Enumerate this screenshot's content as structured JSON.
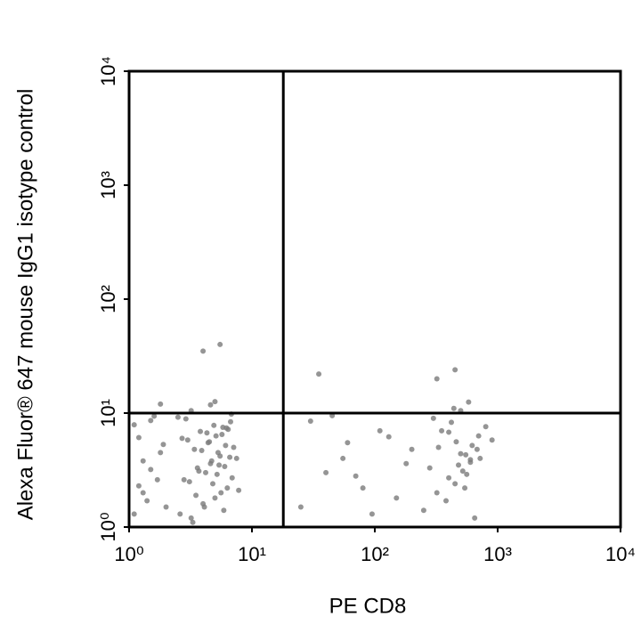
{
  "chart_data": {
    "type": "scatter",
    "xlabel": "PE CD8",
    "ylabel": "Alexa Fluor® 647 mouse IgG1 isotype control",
    "log_x": true,
    "log_y": true,
    "color": "#7a7a7a",
    "xlim": [
      1,
      10000
    ],
    "ylim": [
      1,
      10000
    ],
    "xticks": [
      {
        "value": 1,
        "label": "10⁰"
      },
      {
        "value": 10,
        "label": "10¹"
      },
      {
        "value": 100,
        "label": "10²"
      },
      {
        "value": 1000,
        "label": "10³"
      },
      {
        "value": 10000,
        "label": "10⁴"
      }
    ],
    "yticks": [
      {
        "value": 1,
        "label": "10⁰"
      },
      {
        "value": 10,
        "label": "10¹"
      },
      {
        "value": 100,
        "label": "10²"
      },
      {
        "value": 1000,
        "label": "10³"
      },
      {
        "value": 10000,
        "label": "10⁴"
      }
    ],
    "gate_x": 18,
    "gate_y": 10,
    "x": [
      3.2,
      4.1,
      5.0,
      6.3,
      2.8,
      3.7,
      4.6,
      5.5,
      7.1,
      3.0,
      4.3,
      5.8,
      6.7,
      2.6,
      3.5,
      4.8,
      5.2,
      6.0,
      7.5,
      3.9,
      4.4,
      5.1,
      6.4,
      2.9,
      3.3,
      4.0,
      5.6,
      6.9,
      3.6,
      4.7,
      5.3,
      6.1,
      2.7,
      3.8,
      4.9,
      5.9,
      7.8,
      3.1,
      4.2,
      5.4,
      6.6,
      3.4,
      4.5,
      5.7,
      6.2,
      2.5,
      3.2,
      4.6,
      5.0,
      6.8,
      1.1,
      1.3,
      1.5,
      1.8,
      1.2,
      1.4,
      1.7,
      1.9,
      1.1,
      1.6,
      2.0,
      1.3,
      1.5,
      1.2,
      1.8,
      25,
      40,
      60,
      80,
      110,
      150,
      30,
      55,
      95,
      130,
      180,
      45,
      70,
      200,
      35,
      250,
      320,
      400,
      480,
      550,
      620,
      700,
      800,
      300,
      380,
      450,
      520,
      600,
      680,
      900,
      350,
      420,
      500,
      580,
      650,
      280,
      460,
      540,
      720,
      400,
      500,
      600,
      330,
      440,
      560,
      5.5,
      4.0,
      450,
      320
    ],
    "y": [
      1.2,
      1.5,
      1.8,
      2.2,
      2.6,
      3.1,
      3.6,
      4.2,
      5.0,
      5.8,
      6.7,
      7.5,
      8.4,
      1.3,
      1.9,
      2.4,
      2.9,
      3.4,
      4.0,
      4.7,
      5.5,
      6.3,
      7.2,
      8.9,
      1.1,
      1.6,
      2.0,
      2.7,
      3.3,
      3.8,
      4.5,
      5.2,
      6.0,
      6.9,
      7.8,
      1.4,
      2.1,
      2.5,
      3.0,
      3.5,
      4.1,
      4.8,
      5.6,
      6.5,
      7.4,
      9.2,
      10.5,
      11.8,
      12.6,
      9.8,
      1.3,
      2.0,
      3.2,
      4.5,
      6.1,
      1.7,
      2.6,
      5.3,
      7.9,
      9.4,
      1.5,
      3.8,
      8.6,
      2.3,
      12.0,
      1.5,
      3.0,
      5.5,
      2.2,
      7.0,
      1.8,
      8.5,
      4.0,
      1.3,
      6.2,
      3.6,
      9.5,
      2.8,
      4.8,
      22,
      1.4,
      2.0,
      2.7,
      3.5,
      4.3,
      5.2,
      6.3,
      7.6,
      9.0,
      1.7,
      2.4,
      3.1,
      3.9,
      4.8,
      5.8,
      7.0,
      8.3,
      10.5,
      12.5,
      1.2,
      3.3,
      5.6,
      2.2,
      4.0,
      6.8,
      4.4,
      3.7,
      5.0,
      11.0,
      2.9,
      40,
      35,
      24,
      20
    ]
  }
}
